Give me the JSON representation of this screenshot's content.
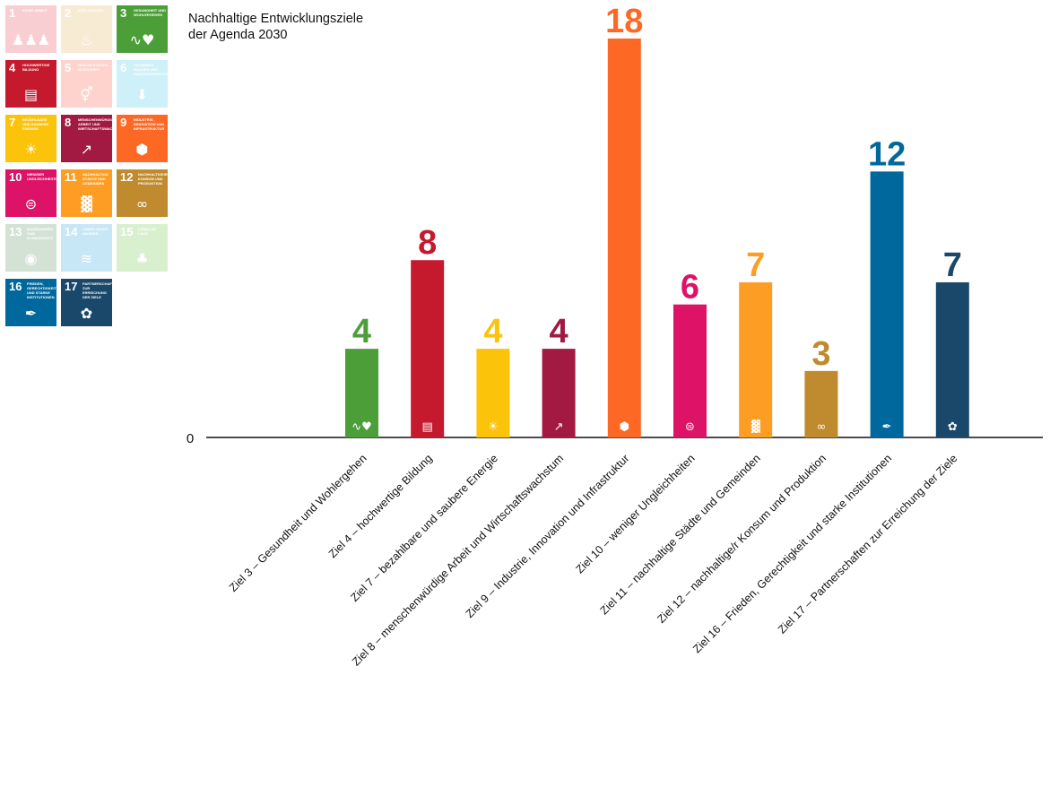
{
  "title": [
    "Nachhaltige Entwicklungsziele",
    "der Agenda 2030"
  ],
  "goal_tiles": [
    {
      "number": "1",
      "caption": "Keine Armut",
      "icon": "family-icon",
      "color": "#E5243B",
      "highlighted": false
    },
    {
      "number": "2",
      "caption": "Kein Hunger",
      "icon": "bowl-icon",
      "color": "#DDA63A",
      "highlighted": false
    },
    {
      "number": "3",
      "caption": "Gesundheit und Wohlergehen",
      "icon": "heartbeat-icon",
      "color": "#4C9F38",
      "highlighted": true
    },
    {
      "number": "4",
      "caption": "Hochwertige Bildung",
      "icon": "book-icon",
      "color": "#C5192D",
      "highlighted": true
    },
    {
      "number": "5",
      "caption": "Geschlechter-Gleichheit",
      "icon": "gender-icon",
      "color": "#FF3A21",
      "highlighted": false
    },
    {
      "number": "6",
      "caption": "Sauberes Wasser und Sanitäreinrichtungen",
      "icon": "water-icon",
      "color": "#26BDE2",
      "highlighted": false
    },
    {
      "number": "7",
      "caption": "Bezahlbare und saubere Energie",
      "icon": "sun-icon",
      "color": "#FCC30B",
      "highlighted": true
    },
    {
      "number": "8",
      "caption": "Menschenwürdige Arbeit und Wirtschaftswachstum",
      "icon": "growth-chart-icon",
      "color": "#A21942",
      "highlighted": true
    },
    {
      "number": "9",
      "caption": "Industrie, Innovation und Infrastruktur",
      "icon": "cubes-icon",
      "color": "#FD6925",
      "highlighted": true
    },
    {
      "number": "10",
      "caption": "Weniger Ungleichheiten",
      "icon": "equal-icon",
      "color": "#DD1367",
      "highlighted": true
    },
    {
      "number": "11",
      "caption": "Nachhaltige Städte und Gemeinden",
      "icon": "city-icon",
      "color": "#FD9D24",
      "highlighted": true
    },
    {
      "number": "12",
      "caption": "Nachhaltige/r Konsum und Produktion",
      "icon": "infinity-icon",
      "color": "#BF8B2E",
      "highlighted": true
    },
    {
      "number": "13",
      "caption": "Massnahmen zum Klimaschutz",
      "icon": "eye-globe-icon",
      "color": "#3F7E44",
      "highlighted": false
    },
    {
      "number": "14",
      "caption": "Leben unter Wasser",
      "icon": "fish-icon",
      "color": "#0A97D9",
      "highlighted": false
    },
    {
      "number": "15",
      "caption": "Leben an Land",
      "icon": "tree-icon",
      "color": "#56C02B",
      "highlighted": false
    },
    {
      "number": "16",
      "caption": "Frieden, Gerechtigkeit und starke Institutionen",
      "icon": "dove-icon",
      "color": "#00689D",
      "highlighted": true
    },
    {
      "number": "17",
      "caption": "Partnerschaften zur Erreichung der Ziele",
      "icon": "flower-icon",
      "color": "#19486A",
      "highlighted": true
    }
  ],
  "chart_data": {
    "type": "bar",
    "categories": [
      "Ziel 3 – Gesundheit und Wohlergehen",
      "Ziel 4 – hochwertige Bildung",
      "Ziel 7 – bezahlbare und saubere Energie",
      "Ziel 8 – menschenwürdige Arbeit und Wirtschaftswachstum",
      "Ziel 9 – Industrie, Innovation und Infrastruktur",
      "Ziel 10 – weniger Ungleichheiten",
      "Ziel 11 – nachhaltige Städte und Gemeinden",
      "Ziel 12 – nachhaltige/r Konsum und Produktion",
      "Ziel 16 – Frieden, Gerechtigkeit und starke Institutionen",
      "Ziel 17 – Partnerschaften zur Erreichung der Ziele"
    ],
    "values": [
      4,
      8,
      4,
      4,
      18,
      6,
      7,
      3,
      12,
      7
    ],
    "data_labels": [
      "4",
      "8",
      "4",
      "4",
      "18",
      "6",
      "7",
      "3",
      "12",
      "7"
    ],
    "colors": [
      "#4C9F38",
      "#C5192D",
      "#FCC30B",
      "#A21942",
      "#FD6925",
      "#DD1367",
      "#FD9D24",
      "#BF8B2E",
      "#00689D",
      "#19486A"
    ],
    "bar_icons": [
      "heartbeat-icon",
      "book-icon",
      "sun-icon",
      "growth-chart-icon",
      "cubes-icon",
      "equal-icon",
      "city-icon",
      "infinity-icon",
      "dove-icon",
      "flower-icon"
    ],
    "y_tick_labels": [
      "0"
    ],
    "ylim": [
      0,
      18
    ],
    "xlabel": "",
    "ylabel": "",
    "grid": false,
    "legend": "none"
  }
}
